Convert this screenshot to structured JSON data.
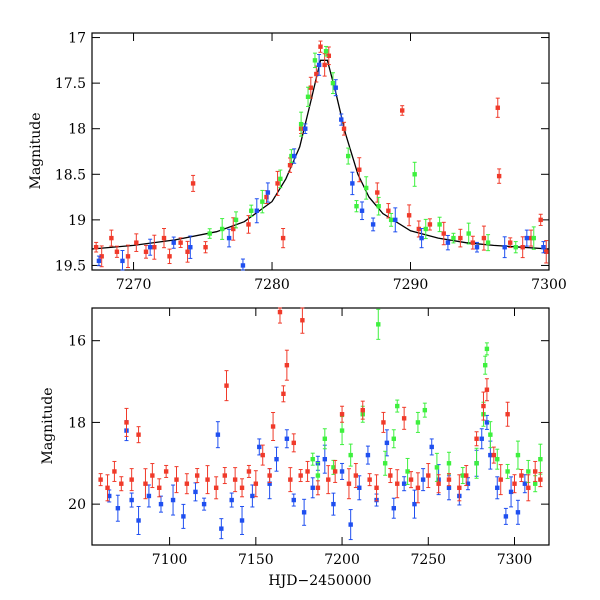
{
  "colors": {
    "red": "#f03a2a",
    "green": "#3ef03e",
    "blue": "#1f4ff0",
    "model": "#000000"
  },
  "chart_data": [
    {
      "type": "scatter",
      "panel": "top",
      "xlabel": "",
      "ylabel": "Magnitude",
      "xlim": [
        7267,
        7300
      ],
      "ylim": [
        19.55,
        16.95
      ],
      "y_inverted": true,
      "xticks": [
        7270,
        7280,
        7290,
        7300
      ],
      "yticks": [
        17,
        17.5,
        18,
        18.5,
        19,
        19.5
      ],
      "ytick_labels": [
        "17",
        "17.5",
        "18",
        "18.5",
        "19",
        "19.5"
      ],
      "xtick_labels": [
        "7270",
        "7280",
        "7290",
        "7300"
      ],
      "model_curve": {
        "x": [
          7267,
          7270,
          7273,
          7276,
          7278,
          7280,
          7281,
          7282,
          7282.8,
          7283.5,
          7284,
          7284.6,
          7285.3,
          7286.2,
          7287,
          7288,
          7290,
          7292,
          7294,
          7296,
          7298,
          7300
        ],
        "y": [
          19.32,
          19.28,
          19.22,
          19.13,
          19.02,
          18.8,
          18.55,
          18.2,
          17.7,
          17.25,
          17.25,
          17.6,
          18.05,
          18.5,
          18.75,
          18.93,
          19.12,
          19.2,
          19.25,
          19.28,
          19.3,
          19.32
        ]
      },
      "series": [
        {
          "name": "red",
          "points": [
            [
              7267.3,
              19.3
            ],
            [
              7267.7,
              19.4
            ],
            [
              7268.4,
              19.2
            ],
            [
              7268.8,
              19.35
            ],
            [
              7269.6,
              19.4
            ],
            [
              7270.2,
              19.25
            ],
            [
              7270.9,
              19.35
            ],
            [
              7271.5,
              19.3
            ],
            [
              7272.2,
              19.2
            ],
            [
              7272.6,
              19.4
            ],
            [
              7273.4,
              19.25
            ],
            [
              7273.9,
              19.35
            ],
            [
              7274.3,
              18.6
            ],
            [
              7275.2,
              19.3
            ],
            [
              7277.2,
              19.1
            ],
            [
              7278.3,
              19.05
            ],
            [
              7279.6,
              18.75
            ],
            [
              7280.4,
              18.6
            ],
            [
              7280.8,
              19.2
            ],
            [
              7281.3,
              18.4
            ],
            [
              7282.1,
              18.0
            ],
            [
              7282.8,
              17.55
            ],
            [
              7283.2,
              17.4
            ],
            [
              7283.5,
              17.1
            ],
            [
              7283.8,
              17.3
            ],
            [
              7284.1,
              17.2
            ],
            [
              7285.2,
              18.0
            ],
            [
              7286.3,
              18.45
            ],
            [
              7287.6,
              18.7
            ],
            [
              7288.4,
              18.9
            ],
            [
              7289.4,
              17.8
            ],
            [
              7289.9,
              18.95
            ],
            [
              7290.6,
              19.1
            ],
            [
              7291.4,
              19.05
            ],
            [
              7292.4,
              19.15
            ],
            [
              7293.6,
              19.2
            ],
            [
              7294.5,
              19.25
            ],
            [
              7295.3,
              19.2
            ],
            [
              7296.3,
              17.77
            ],
            [
              7296.4,
              18.52
            ],
            [
              7297.2,
              19.25
            ],
            [
              7298.1,
              19.3
            ],
            [
              7298.7,
              19.2
            ],
            [
              7299.4,
              19.0
            ],
            [
              7299.8,
              19.35
            ]
          ]
        },
        {
          "name": "green",
          "points": [
            [
              7275.5,
              19.15
            ],
            [
              7276.4,
              19.1
            ],
            [
              7277.4,
              19.0
            ],
            [
              7278.5,
              18.9
            ],
            [
              7279.3,
              18.8
            ],
            [
              7280.6,
              18.55
            ],
            [
              7281.4,
              18.3
            ],
            [
              7282.1,
              17.95
            ],
            [
              7282.6,
              17.65
            ],
            [
              7283.1,
              17.25
            ],
            [
              7283.9,
              17.15
            ],
            [
              7284.4,
              17.5
            ],
            [
              7285.5,
              18.3
            ],
            [
              7286.1,
              18.85
            ],
            [
              7286.8,
              18.65
            ],
            [
              7287.7,
              18.85
            ],
            [
              7288.6,
              19.0
            ],
            [
              7290.3,
              18.5
            ],
            [
              7291.1,
              19.1
            ],
            [
              7292.1,
              19.05
            ],
            [
              7293.1,
              19.2
            ],
            [
              7294.2,
              19.15
            ],
            [
              7295.6,
              19.25
            ],
            [
              7297.6,
              19.3
            ],
            [
              7298.9,
              19.2
            ]
          ]
        },
        {
          "name": "blue",
          "points": [
            [
              7267.5,
              19.45
            ],
            [
              7269.2,
              19.45
            ],
            [
              7271.2,
              19.3
            ],
            [
              7272.9,
              19.25
            ],
            [
              7274.1,
              19.3
            ],
            [
              7276.9,
              19.2
            ],
            [
              7277.9,
              19.5
            ],
            [
              7278.9,
              18.9
            ],
            [
              7279.7,
              18.7
            ],
            [
              7281.6,
              18.3
            ],
            [
              7282.4,
              18.0
            ],
            [
              7283.4,
              17.3
            ],
            [
              7284.6,
              17.55
            ],
            [
              7285.0,
              17.9
            ],
            [
              7285.8,
              18.6
            ],
            [
              7286.5,
              18.9
            ],
            [
              7287.3,
              19.05
            ],
            [
              7288.9,
              19.0
            ],
            [
              7290.8,
              19.2
            ],
            [
              7292.7,
              19.25
            ],
            [
              7294.8,
              19.3
            ],
            [
              7296.8,
              19.3
            ],
            [
              7298.4,
              19.2
            ],
            [
              7299.6,
              19.3
            ]
          ]
        }
      ]
    },
    {
      "type": "scatter",
      "panel": "bottom",
      "xlabel": "HJD−2450000",
      "ylabel": "Magnitude",
      "xlim": [
        7055,
        7320
      ],
      "ylim": [
        21.0,
        15.2
      ],
      "y_inverted": true,
      "xticks": [
        7100,
        7150,
        7200,
        7250,
        7300
      ],
      "yticks": [
        16,
        18,
        20
      ],
      "ytick_labels": [
        "16",
        "18",
        "20"
      ],
      "xtick_labels": [
        "7100",
        "7150",
        "7200",
        "7250",
        "7300"
      ],
      "series": [
        {
          "name": "blue",
          "points": [
            [
              7065,
              19.8
            ],
            [
              7070,
              20.1
            ],
            [
              7075,
              18.2
            ],
            [
              7078,
              19.9
            ],
            [
              7082,
              20.4
            ],
            [
              7088,
              19.8
            ],
            [
              7095,
              20.0
            ],
            [
              7102,
              19.9
            ],
            [
              7108,
              20.3
            ],
            [
              7115,
              19.7
            ],
            [
              7120,
              20.0
            ],
            [
              7128,
              18.3
            ],
            [
              7130,
              20.6
            ],
            [
              7136,
              19.9
            ],
            [
              7142,
              20.4
            ],
            [
              7148,
              19.8
            ],
            [
              7152,
              18.6
            ],
            [
              7158,
              19.5
            ],
            [
              7162,
              18.9
            ],
            [
              7168,
              18.4
            ],
            [
              7172,
              19.9
            ],
            [
              7178,
              20.2
            ],
            [
              7183,
              19.6
            ],
            [
              7186,
              19.0
            ],
            [
              7190,
              18.9
            ],
            [
              7195,
              20.0
            ],
            [
              7200,
              19.2
            ],
            [
              7205,
              20.5
            ],
            [
              7210,
              19.6
            ],
            [
              7215,
              18.8
            ],
            [
              7220,
              19.9
            ],
            [
              7226,
              18.5
            ],
            [
              7230,
              20.1
            ],
            [
              7236,
              19.5
            ],
            [
              7242,
              20.0
            ],
            [
              7247,
              19.4
            ],
            [
              7252,
              18.6
            ],
            [
              7256,
              19.4
            ],
            [
              7262,
              19.6
            ],
            [
              7268,
              19.8
            ],
            [
              7273,
              19.5
            ],
            [
              7278,
              19.0
            ],
            [
              7281,
              18.4
            ],
            [
              7284,
              18.0
            ],
            [
              7286,
              18.8
            ],
            [
              7290,
              19.6
            ],
            [
              7295,
              20.3
            ],
            [
              7298,
              19.7
            ],
            [
              7302,
              20.2
            ],
            [
              7306,
              19.5
            ]
          ]
        },
        {
          "name": "green",
          "points": [
            [
              7183,
              18.9
            ],
            [
              7186,
              19.3
            ],
            [
              7190,
              18.4
            ],
            [
              7195,
              19.1
            ],
            [
              7200,
              18.2
            ],
            [
              7205,
              18.8
            ],
            [
              7212,
              17.8
            ],
            [
              7221,
              15.6
            ],
            [
              7225,
              19.0
            ],
            [
              7230,
              18.4
            ],
            [
              7232,
              17.6
            ],
            [
              7238,
              19.2
            ],
            [
              7244,
              18.0
            ],
            [
              7248,
              17.7
            ],
            [
              7255,
              19.1
            ],
            [
              7262,
              19.0
            ],
            [
              7270,
              19.3
            ],
            [
              7278,
              19.0
            ],
            [
              7282,
              17.8
            ],
            [
              7283,
              16.6
            ],
            [
              7284,
              16.2
            ],
            [
              7286,
              18.3
            ],
            [
              7290,
              18.9
            ],
            [
              7296,
              19.2
            ],
            [
              7302,
              18.8
            ],
            [
              7308,
              19.2
            ],
            [
              7312,
              19.5
            ],
            [
              7315,
              18.9
            ]
          ]
        },
        {
          "name": "red",
          "points": [
            [
              7060,
              19.4
            ],
            [
              7064,
              19.6
            ],
            [
              7068,
              19.2
            ],
            [
              7072,
              19.5
            ],
            [
              7075,
              18.0
            ],
            [
              7078,
              19.4
            ],
            [
              7082,
              18.3
            ],
            [
              7086,
              19.5
            ],
            [
              7090,
              19.3
            ],
            [
              7094,
              19.6
            ],
            [
              7098,
              19.2
            ],
            [
              7104,
              19.4
            ],
            [
              7110,
              19.5
            ],
            [
              7116,
              19.3
            ],
            [
              7122,
              19.4
            ],
            [
              7127,
              19.6
            ],
            [
              7132,
              19.3
            ],
            [
              7133,
              17.1
            ],
            [
              7138,
              19.4
            ],
            [
              7142,
              19.6
            ],
            [
              7146,
              19.2
            ],
            [
              7150,
              19.5
            ],
            [
              7154,
              18.8
            ],
            [
              7158,
              19.3
            ],
            [
              7160,
              18.1
            ],
            [
              7164,
              15.3
            ],
            [
              7166,
              17.3
            ],
            [
              7168,
              16.6
            ],
            [
              7170,
              19.4
            ],
            [
              7172,
              18.5
            ],
            [
              7176,
              19.3
            ],
            [
              7177,
              15.5
            ],
            [
              7180,
              19.2
            ],
            [
              7186,
              19.6
            ],
            [
              7192,
              19.4
            ],
            [
              7196,
              19.2
            ],
            [
              7200,
              17.8
            ],
            [
              7204,
              19.5
            ],
            [
              7208,
              19.3
            ],
            [
              7212,
              17.7
            ],
            [
              7216,
              19.4
            ],
            [
              7220,
              19.6
            ],
            [
              7224,
              18.0
            ],
            [
              7228,
              19.3
            ],
            [
              7232,
              19.5
            ],
            [
              7236,
              17.9
            ],
            [
              7240,
              19.4
            ],
            [
              7244,
              19.6
            ],
            [
              7250,
              19.3
            ],
            [
              7256,
              19.5
            ],
            [
              7262,
              19.4
            ],
            [
              7268,
              19.6
            ],
            [
              7272,
              19.3
            ],
            [
              7278,
              18.4
            ],
            [
              7282,
              17.6
            ],
            [
              7284,
              17.2
            ],
            [
              7288,
              18.8
            ],
            [
              7292,
              19.4
            ],
            [
              7296,
              17.8
            ],
            [
              7300,
              19.5
            ],
            [
              7304,
              19.3
            ],
            [
              7308,
              19.6
            ],
            [
              7312,
              19.2
            ],
            [
              7315,
              19.4
            ]
          ]
        }
      ]
    }
  ]
}
